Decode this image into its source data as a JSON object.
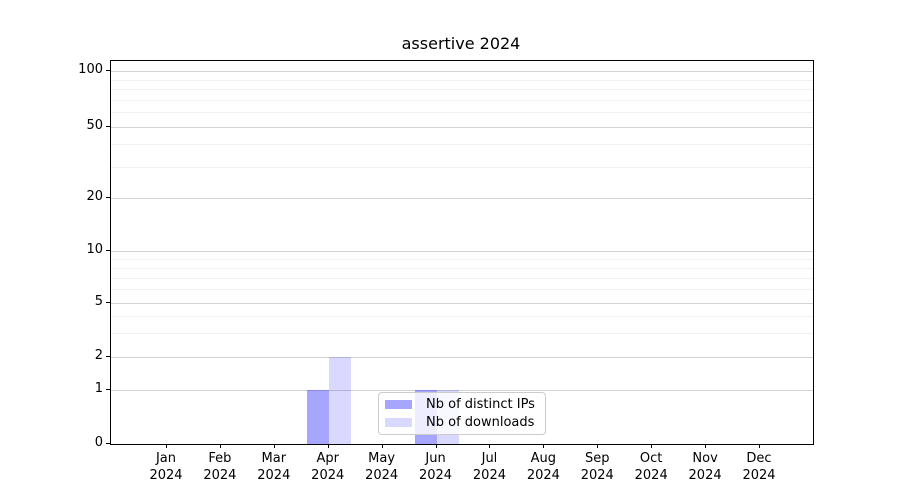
{
  "title": "assertive 2024",
  "chart_data": {
    "type": "bar",
    "title": "assertive 2024",
    "x_axis": {
      "months": [
        "Jan",
        "Feb",
        "Mar",
        "Apr",
        "May",
        "Jun",
        "Jul",
        "Aug",
        "Sep",
        "Oct",
        "Nov",
        "Dec"
      ],
      "year": "2024"
    },
    "y_axis": {
      "scale": "log-with-zero-floor",
      "tick_labels": [
        100,
        50,
        20,
        10,
        5,
        2,
        1,
        0
      ],
      "minor_ticks": [
        90,
        80,
        70,
        60,
        40,
        30,
        9,
        8,
        7,
        6,
        4,
        3
      ],
      "ylim": [
        0,
        110
      ]
    },
    "series": [
      {
        "name": "Nb of distinct IPs",
        "color": "#a6a6ff",
        "bar_color": "rgba(0,0,255,0.35)",
        "values": [
          0,
          0,
          0,
          1,
          0,
          1,
          0,
          0,
          0,
          0,
          0,
          0
        ]
      },
      {
        "name": "Nb of downloads",
        "color": "#d9d9ff",
        "bar_color": "rgba(0,0,255,0.15)",
        "values": [
          0,
          0,
          0,
          2,
          0,
          1,
          0,
          0,
          0,
          0,
          0,
          0
        ]
      }
    ],
    "legend": {
      "position": "lower-center",
      "entries": [
        "Nb of distinct IPs",
        "Nb of downloads"
      ]
    },
    "grid": {
      "major_color": "#d3d3d3",
      "minor_color": "#f0f0f0"
    }
  }
}
